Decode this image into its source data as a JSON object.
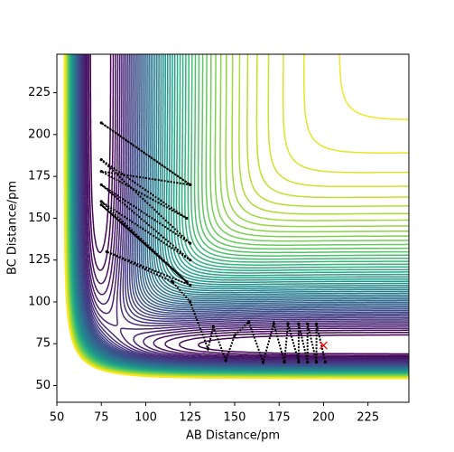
{
  "chart_data": {
    "type": "contour",
    "xlabel": "AB Distance/pm",
    "ylabel": "BC Distance/pm",
    "xlim": [
      50,
      248
    ],
    "ylim": [
      40,
      248
    ],
    "xticks": [
      50,
      75,
      100,
      125,
      150,
      175,
      200,
      225
    ],
    "yticks": [
      50,
      75,
      100,
      125,
      150,
      175,
      200,
      225
    ],
    "colormap": "viridis",
    "levels": [
      -440,
      -432,
      -424,
      -416,
      -408,
      -400,
      -392,
      -384,
      -376,
      -368,
      -360,
      -352,
      -344,
      -336,
      -328,
      -320,
      -312,
      -304,
      -296,
      -288,
      -280,
      -272,
      -264,
      -256,
      -248,
      -240,
      -232,
      -224,
      -216,
      -208,
      -200,
      -192,
      -184,
      -176,
      -168,
      -160,
      -152,
      -144,
      -136,
      -128,
      -120,
      -112,
      -104,
      -96,
      -88,
      -80,
      -72,
      -64,
      -56,
      -48,
      -40,
      -32,
      -24,
      -16,
      -8,
      0
    ],
    "trajectory": {
      "color": "#000000",
      "x": [
        201,
        196,
        196,
        191,
        191,
        186,
        186,
        180,
        178,
        172,
        166,
        158,
        150,
        145,
        138,
        135,
        125,
        115,
        78,
        125,
        75,
        123,
        75,
        125,
        75,
        125,
        75,
        123,
        75,
        125,
        75,
        125
      ],
      "y": [
        64,
        87,
        64,
        87,
        64,
        87,
        64,
        87,
        64,
        87,
        64,
        88,
        80,
        65,
        85,
        72,
        100,
        112,
        130,
        110,
        158,
        112,
        160,
        125,
        170,
        135,
        185,
        150,
        178,
        170,
        207,
        170
      ]
    },
    "marker": {
      "x": 200,
      "y": 74,
      "color": "#ff0000"
    }
  }
}
